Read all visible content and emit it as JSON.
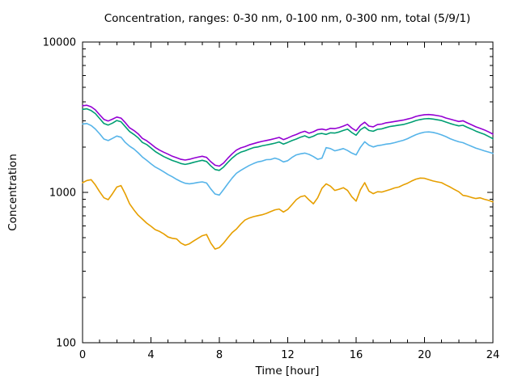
{
  "canvas": {
    "background": "#ffffff",
    "text_color": "#000000",
    "border_color": "#000000"
  },
  "chart_data": {
    "type": "line",
    "title": "Concentration, ranges: 0-30 nm, 0-100 nm, 0-300 nm, total (5/9/1)",
    "xlabel": "Time [hour]",
    "ylabel": "Concentration",
    "legend_position": "none",
    "grid": false,
    "x_axis": {
      "min": 0,
      "max": 24,
      "major_ticks": [
        0,
        4,
        8,
        12,
        16,
        20,
        24
      ],
      "minor_tick_step": 1
    },
    "y_axis": {
      "scale": "log",
      "min": 100,
      "max": 10000,
      "major_ticks": [
        100,
        1000,
        10000
      ],
      "minor_ticks": [
        200,
        300,
        400,
        500,
        600,
        700,
        800,
        900,
        2000,
        3000,
        4000,
        5000,
        6000,
        7000,
        8000,
        9000
      ]
    },
    "x": {
      "start": 0,
      "step": 0.25,
      "count": 97,
      "unit": "hour"
    },
    "series": [
      {
        "name": "0-30 nm",
        "color": "#e69f00",
        "values": [
          1160,
          1200,
          1215,
          1120,
          1010,
          920,
          895,
          980,
          1085,
          1110,
          975,
          840,
          765,
          705,
          665,
          625,
          595,
          565,
          550,
          530,
          505,
          495,
          490,
          460,
          445,
          455,
          475,
          495,
          515,
          525,
          460,
          420,
          430,
          460,
          500,
          540,
          570,
          615,
          655,
          675,
          690,
          700,
          710,
          725,
          745,
          765,
          775,
          740,
          770,
          830,
          895,
          935,
          950,
          890,
          840,
          920,
          1065,
          1140,
          1100,
          1030,
          1050,
          1075,
          1030,
          935,
          875,
          1040,
          1160,
          1020,
          980,
          1010,
          1005,
          1025,
          1045,
          1070,
          1085,
          1120,
          1150,
          1190,
          1225,
          1245,
          1240,
          1215,
          1190,
          1175,
          1160,
          1120,
          1085,
          1045,
          1010,
          955,
          945,
          925,
          910,
          920,
          900,
          885,
          865
        ]
      },
      {
        "name": "0-100 nm",
        "color": "#56b4e9",
        "values": [
          2850,
          2870,
          2785,
          2640,
          2455,
          2265,
          2210,
          2285,
          2370,
          2325,
          2150,
          2030,
          1945,
          1835,
          1720,
          1635,
          1550,
          1475,
          1425,
          1370,
          1315,
          1270,
          1220,
          1180,
          1150,
          1140,
          1150,
          1165,
          1175,
          1155,
          1055,
          975,
          960,
          1045,
          1145,
          1245,
          1340,
          1400,
          1455,
          1510,
          1555,
          1595,
          1615,
          1650,
          1655,
          1690,
          1655,
          1595,
          1625,
          1710,
          1775,
          1805,
          1825,
          1790,
          1730,
          1660,
          1690,
          1985,
          1955,
          1890,
          1920,
          1955,
          1900,
          1825,
          1775,
          1995,
          2170,
          2060,
          2005,
          2045,
          2065,
          2095,
          2110,
          2140,
          2180,
          2220,
          2275,
          2350,
          2420,
          2475,
          2515,
          2525,
          2505,
          2465,
          2410,
          2350,
          2275,
          2220,
          2170,
          2140,
          2080,
          2025,
          1970,
          1930,
          1890,
          1855,
          1815
        ]
      },
      {
        "name": "0-300 nm",
        "color": "#009e73",
        "values": [
          3565,
          3595,
          3500,
          3345,
          3100,
          2870,
          2805,
          2890,
          3005,
          2950,
          2735,
          2540,
          2430,
          2305,
          2150,
          2080,
          1975,
          1870,
          1795,
          1730,
          1680,
          1630,
          1595,
          1555,
          1535,
          1555,
          1585,
          1610,
          1635,
          1605,
          1500,
          1420,
          1400,
          1475,
          1585,
          1690,
          1785,
          1850,
          1890,
          1940,
          1985,
          2005,
          2040,
          2065,
          2095,
          2125,
          2165,
          2095,
          2150,
          2210,
          2265,
          2330,
          2380,
          2310,
          2365,
          2445,
          2465,
          2430,
          2490,
          2480,
          2520,
          2580,
          2635,
          2500,
          2400,
          2610,
          2720,
          2580,
          2550,
          2625,
          2645,
          2700,
          2745,
          2770,
          2800,
          2825,
          2880,
          2935,
          3005,
          3050,
          3085,
          3095,
          3075,
          3040,
          3005,
          2935,
          2870,
          2815,
          2770,
          2795,
          2710,
          2635,
          2555,
          2490,
          2435,
          2355,
          2275
        ]
      },
      {
        "name": "total",
        "color": "#9400d3",
        "values": [
          3770,
          3800,
          3710,
          3540,
          3280,
          3060,
          2985,
          3070,
          3170,
          3120,
          2910,
          2690,
          2580,
          2450,
          2285,
          2205,
          2100,
          1990,
          1910,
          1850,
          1795,
          1740,
          1700,
          1660,
          1640,
          1660,
          1690,
          1715,
          1740,
          1710,
          1600,
          1515,
          1495,
          1570,
          1690,
          1805,
          1910,
          1975,
          2015,
          2070,
          2110,
          2150,
          2185,
          2215,
          2245,
          2280,
          2320,
          2245,
          2300,
          2370,
          2425,
          2500,
          2550,
          2475,
          2530,
          2615,
          2635,
          2600,
          2665,
          2655,
          2695,
          2760,
          2835,
          2675,
          2570,
          2790,
          2930,
          2760,
          2730,
          2825,
          2845,
          2905,
          2930,
          2960,
          2995,
          3025,
          3075,
          3125,
          3200,
          3250,
          3285,
          3295,
          3275,
          3240,
          3200,
          3125,
          3070,
          3015,
          2960,
          2995,
          2900,
          2815,
          2730,
          2670,
          2605,
          2525,
          2440
        ]
      }
    ]
  }
}
